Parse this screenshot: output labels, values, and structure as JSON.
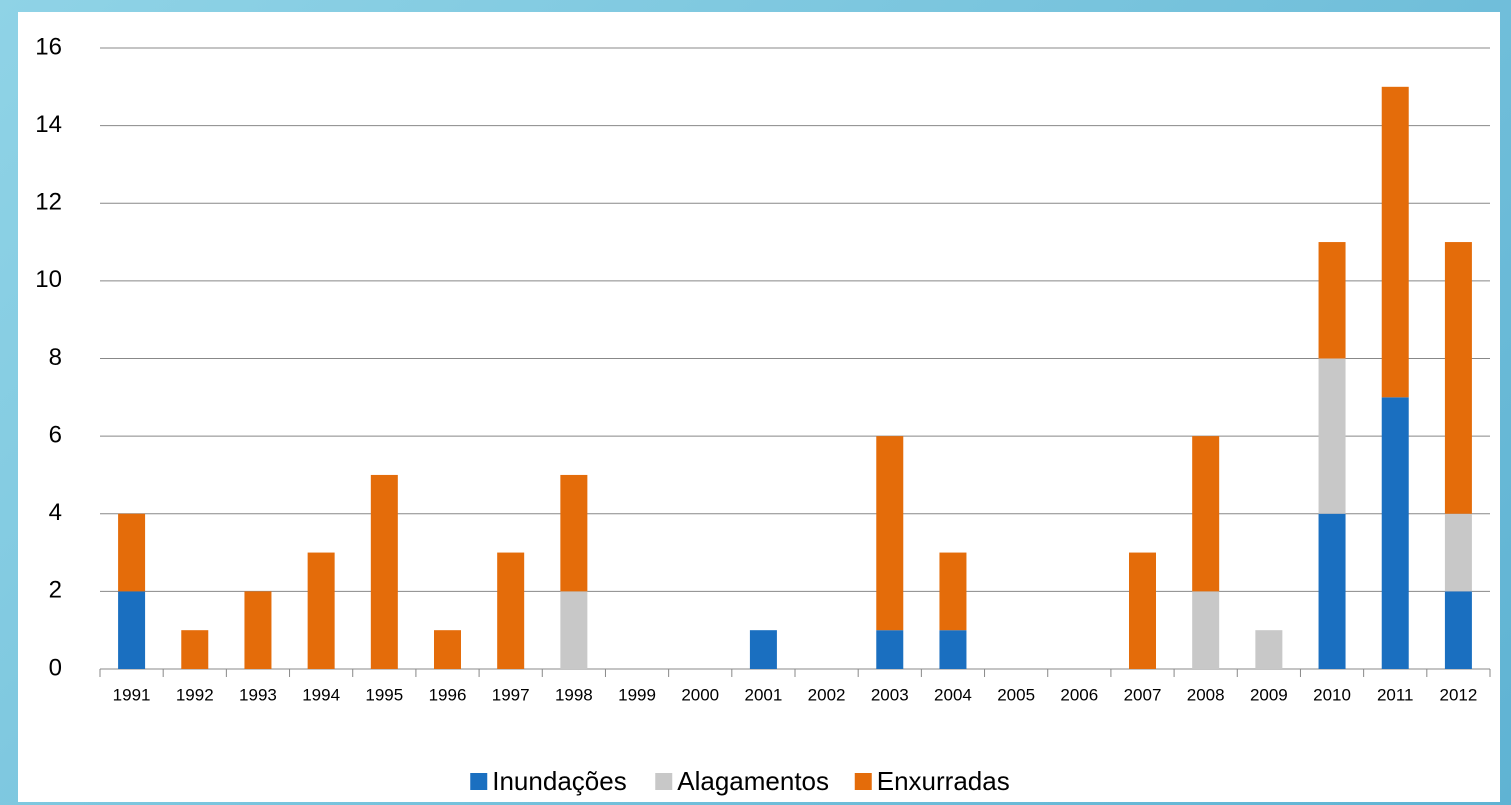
{
  "chart_data": {
    "type": "bar",
    "stacked": true,
    "categories": [
      "1991",
      "1992",
      "1993",
      "1994",
      "1995",
      "1996",
      "1997",
      "1998",
      "1999",
      "2000",
      "2001",
      "2002",
      "2003",
      "2004",
      "2005",
      "2006",
      "2007",
      "2008",
      "2009",
      "2010",
      "2011",
      "2012"
    ],
    "series": [
      {
        "name": "Inundações",
        "color": "#1a6fc0",
        "values": [
          2,
          0,
          0,
          0,
          0,
          0,
          0,
          0,
          0,
          0,
          1,
          0,
          1,
          1,
          0,
          0,
          0,
          0,
          0,
          4,
          7,
          2
        ]
      },
      {
        "name": "Alagamentos",
        "color": "#c8c8c8",
        "values": [
          0,
          0,
          0,
          0,
          0,
          0,
          0,
          2,
          0,
          0,
          0,
          0,
          0,
          0,
          0,
          0,
          0,
          2,
          1,
          4,
          0,
          2
        ]
      },
      {
        "name": "Enxurradas",
        "color": "#e46c0a",
        "values": [
          2,
          1,
          2,
          3,
          5,
          1,
          3,
          3,
          0,
          0,
          0,
          0,
          5,
          2,
          0,
          0,
          3,
          4,
          0,
          3,
          8,
          7
        ]
      }
    ],
    "ylim": [
      0,
      16
    ],
    "yticks": [
      0,
      2,
      4,
      6,
      8,
      10,
      12,
      14,
      16
    ],
    "grid": true,
    "legend": "bottom"
  }
}
